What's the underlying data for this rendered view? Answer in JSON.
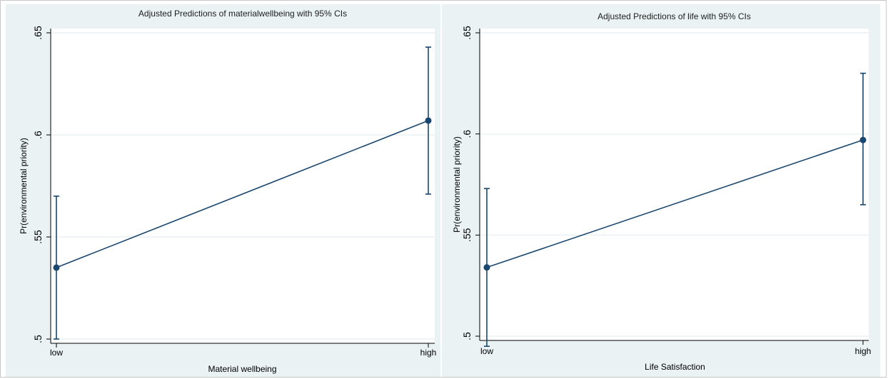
{
  "chart_data": [
    {
      "type": "line",
      "title": "Adjusted Predictions of materialwellbeing with 95% CIs",
      "xlabel": "Material wellbeing",
      "ylabel": "Pr(environmental priority)",
      "categories": [
        "low",
        "high"
      ],
      "values": [
        0.535,
        0.607
      ],
      "ci_lower": [
        0.5,
        0.571
      ],
      "ci_upper": [
        0.57,
        0.643
      ],
      "ylim": [
        0.5,
        0.65
      ],
      "yticks": [
        0.5,
        0.55,
        0.6,
        0.65
      ],
      "ytick_labels": [
        ".5",
        ".55",
        ".6",
        ".65"
      ],
      "grid": true,
      "colors": {
        "line": "#1a476f",
        "grid": "#ffffff",
        "plot_bg": "#ffffff",
        "panel_bg": "#eaf2f3"
      }
    },
    {
      "type": "line",
      "title": "Adjusted Predictions of life with 95% CIs",
      "xlabel": "Life Satisfaction",
      "ylabel": "Pr(environmental priority)",
      "categories": [
        "low",
        "high"
      ],
      "values": [
        0.534,
        0.597
      ],
      "ci_lower": [
        0.495,
        0.565
      ],
      "ci_upper": [
        0.573,
        0.63
      ],
      "ylim": [
        0.5,
        0.65
      ],
      "yticks": [
        0.5,
        0.55,
        0.6,
        0.65
      ],
      "ytick_labels": [
        ".5",
        ".55",
        ".6",
        ".65"
      ],
      "grid": true,
      "colors": {
        "line": "#1a476f",
        "grid": "#ffffff",
        "plot_bg": "#ffffff",
        "panel_bg": "#eaf2f3"
      }
    }
  ]
}
